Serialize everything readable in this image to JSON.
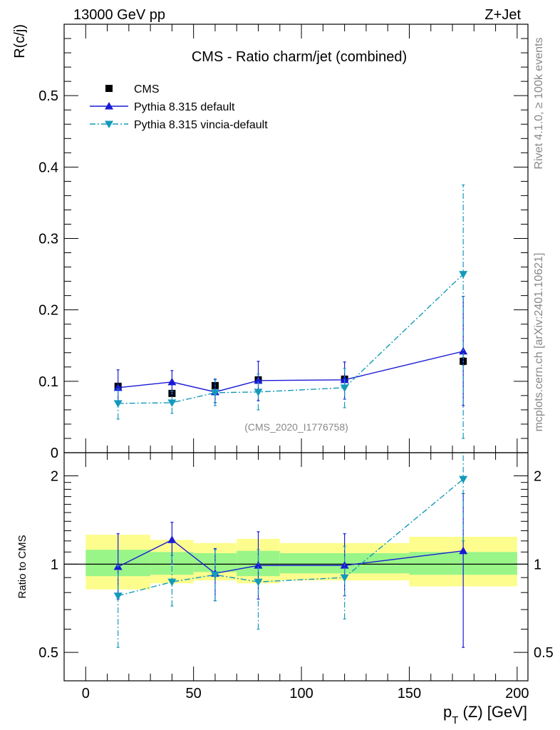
{
  "header": {
    "left": "13000 GeV pp",
    "right": "Z+Jet",
    "side_top": "Rivet 4.1.0, ≥ 100k events",
    "side_bottom": "mcplots.cern.ch [arXiv:2401.10621]"
  },
  "chart_data": [
    {
      "type": "line",
      "title": "CMS - Ratio charm/jet (combined)",
      "ylabel": "R(c/j)",
      "watermark": "(CMS_2020_I1776758)",
      "xlim": [
        -10,
        205
      ],
      "ylim": [
        0,
        0.6
      ],
      "yticks": [
        0,
        0.1,
        0.2,
        0.3,
        0.4,
        0.5
      ],
      "ytick_labels": [
        "0",
        "0.1",
        "0.2",
        "0.3",
        "0.4",
        "0.5"
      ],
      "legend_position": "top-left",
      "series": [
        {
          "name": "CMS",
          "color": "#000000",
          "marker": "square",
          "x": [
            15,
            40,
            60,
            80,
            120,
            175
          ],
          "values": [
            0.093,
            0.083,
            0.094,
            0.102,
            0.103,
            0.128
          ],
          "err": [
            0.004,
            0.004,
            0.004,
            0.004,
            0.004,
            0.005
          ]
        },
        {
          "name": "Pythia 8.315 default",
          "color": "#1a1ad6",
          "marker": "triangle-up",
          "x": [
            15,
            40,
            60,
            80,
            120,
            175
          ],
          "values": [
            0.091,
            0.099,
            0.085,
            0.101,
            0.102,
            0.142
          ],
          "err_lo": [
            0.02,
            0.017,
            0.015,
            0.028,
            0.027,
            0.076
          ],
          "err_hi": [
            0.025,
            0.016,
            0.018,
            0.027,
            0.025,
            0.077
          ]
        },
        {
          "name": "Pythia 8.315 vincia-default",
          "color": "#139aba",
          "marker": "triangle-down",
          "x": [
            15,
            40,
            60,
            80,
            120,
            175
          ],
          "values": [
            0.069,
            0.07,
            0.084,
            0.085,
            0.091,
            0.25
          ],
          "err_lo": [
            0.022,
            0.015,
            0.018,
            0.025,
            0.028,
            0.23
          ],
          "err_hi": [
            0.02,
            0.016,
            0.018,
            0.025,
            0.027,
            0.125
          ]
        }
      ]
    },
    {
      "type": "line",
      "title": "",
      "ylabel": "Ratio to CMS",
      "xlabel_main": "p",
      "xlabel_sub": "T",
      "xlabel_rest": " (Z) [GeV]",
      "xlim": [
        -10,
        205
      ],
      "ylim": [
        0.4,
        2.4
      ],
      "yscale": "log",
      "xticks": [
        0,
        50,
        100,
        150,
        200
      ],
      "xtick_labels": [
        "0",
        "50",
        "100",
        "150",
        "200"
      ],
      "yticks": [
        0.5,
        1,
        2
      ],
      "ytick_labels": [
        "0.5",
        "1",
        "2"
      ],
      "bands": [
        {
          "x0": 0,
          "x1": 30,
          "inner": [
            0.91,
            1.12
          ],
          "outer": [
            0.82,
            1.26
          ]
        },
        {
          "x0": 30,
          "x1": 50,
          "inner": [
            0.92,
            1.1
          ],
          "outer": [
            0.86,
            1.21
          ]
        },
        {
          "x0": 50,
          "x1": 70,
          "inner": [
            0.94,
            1.09
          ],
          "outer": [
            0.88,
            1.18
          ]
        },
        {
          "x0": 70,
          "x1": 90,
          "inner": [
            0.91,
            1.11
          ],
          "outer": [
            0.86,
            1.22
          ]
        },
        {
          "x0": 90,
          "x1": 150,
          "inner": [
            0.93,
            1.09
          ],
          "outer": [
            0.88,
            1.18
          ]
        },
        {
          "x0": 150,
          "x1": 200,
          "inner": [
            0.92,
            1.1
          ],
          "outer": [
            0.84,
            1.24
          ]
        }
      ],
      "series": [
        {
          "name": "Pythia 8.315 default",
          "color": "#1a1ad6",
          "marker": "triangle-up",
          "x": [
            15,
            40,
            60,
            80,
            120,
            175
          ],
          "values": [
            0.98,
            1.21,
            0.93,
            0.99,
            0.99,
            1.11
          ],
          "err_lo": [
            0.22,
            0.21,
            0.18,
            0.23,
            0.21,
            0.59
          ],
          "err_hi": [
            0.29,
            0.18,
            0.2,
            0.3,
            0.28,
            0.63
          ]
        },
        {
          "name": "Pythia 8.315 vincia-default",
          "color": "#139aba",
          "marker": "triangle-down",
          "x": [
            15,
            40,
            60,
            80,
            120,
            175
          ],
          "values": [
            0.78,
            0.87,
            0.92,
            0.87,
            0.9,
            1.95
          ],
          "err_lo": [
            0.26,
            0.15,
            0.17,
            0.27,
            0.25,
            0.75
          ],
          "err_hi": [
            0.21,
            0.2,
            0.2,
            0.25,
            0.25,
            0.75
          ]
        }
      ]
    }
  ]
}
